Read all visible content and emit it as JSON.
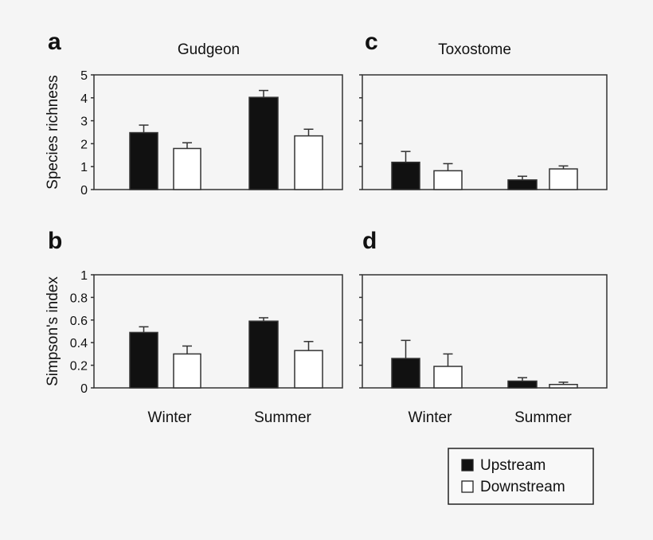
{
  "chart_data": [
    {
      "type": "bar",
      "panel_label": "a",
      "title": "Gudgeon",
      "ylabel": "Species richness",
      "ylim": [
        0,
        5
      ],
      "yticks": [
        "0",
        "1",
        "2",
        "3",
        "4",
        "5"
      ],
      "show_tick_labels": true,
      "categories": [
        "Winter",
        "Summer"
      ],
      "series": [
        {
          "name": "Upstream",
          "values": [
            2.48,
            4.02
          ],
          "errors": [
            0.33,
            0.3
          ]
        },
        {
          "name": "Downstream",
          "values": [
            1.79,
            2.34
          ],
          "errors": [
            0.25,
            0.29
          ]
        }
      ]
    },
    {
      "type": "bar",
      "panel_label": "b",
      "title": "",
      "ylabel": "Simpson's index",
      "ylim": [
        0,
        1
      ],
      "yticks": [
        "0",
        "0.2",
        "0.4",
        "0.6",
        "0.8",
        "1"
      ],
      "show_tick_labels": true,
      "categories": [
        "Winter",
        "Summer"
      ],
      "series": [
        {
          "name": "Upstream",
          "values": [
            0.49,
            0.59
          ],
          "errors": [
            0.05,
            0.03
          ]
        },
        {
          "name": "Downstream",
          "values": [
            0.3,
            0.33
          ],
          "errors": [
            0.07,
            0.08
          ]
        }
      ]
    },
    {
      "type": "bar",
      "panel_label": "c",
      "title": "Toxostome",
      "ylabel": "",
      "ylim": [
        0,
        5
      ],
      "yticks": [
        "0",
        "1",
        "2",
        "3",
        "4",
        "5"
      ],
      "show_tick_labels": false,
      "categories": [
        "Winter",
        "Summer"
      ],
      "series": [
        {
          "name": "Upstream",
          "values": [
            1.19,
            0.42
          ],
          "errors": [
            0.47,
            0.16
          ]
        },
        {
          "name": "Downstream",
          "values": [
            0.82,
            0.9
          ],
          "errors": [
            0.31,
            0.13
          ]
        }
      ]
    },
    {
      "type": "bar",
      "panel_label": "d",
      "title": "",
      "ylabel": "",
      "ylim": [
        0,
        1
      ],
      "yticks": [
        "0",
        "0.2",
        "0.4",
        "0.6",
        "0.8",
        "1"
      ],
      "show_tick_labels": false,
      "categories": [
        "Winter",
        "Summer"
      ],
      "series": [
        {
          "name": "Upstream",
          "values": [
            0.26,
            0.06
          ],
          "errors": [
            0.16,
            0.03
          ]
        },
        {
          "name": "Downstream",
          "values": [
            0.19,
            0.03
          ],
          "errors": [
            0.11,
            0.02
          ]
        }
      ]
    }
  ],
  "legend": {
    "placement": "bottom-right",
    "items": [
      {
        "label": "Upstream",
        "color": "#111111"
      },
      {
        "label": "Downstream",
        "color": "#ffffff"
      }
    ]
  },
  "colors": {
    "upstream": "#111111",
    "downstream": "#ffffff",
    "axis": "#333333"
  }
}
